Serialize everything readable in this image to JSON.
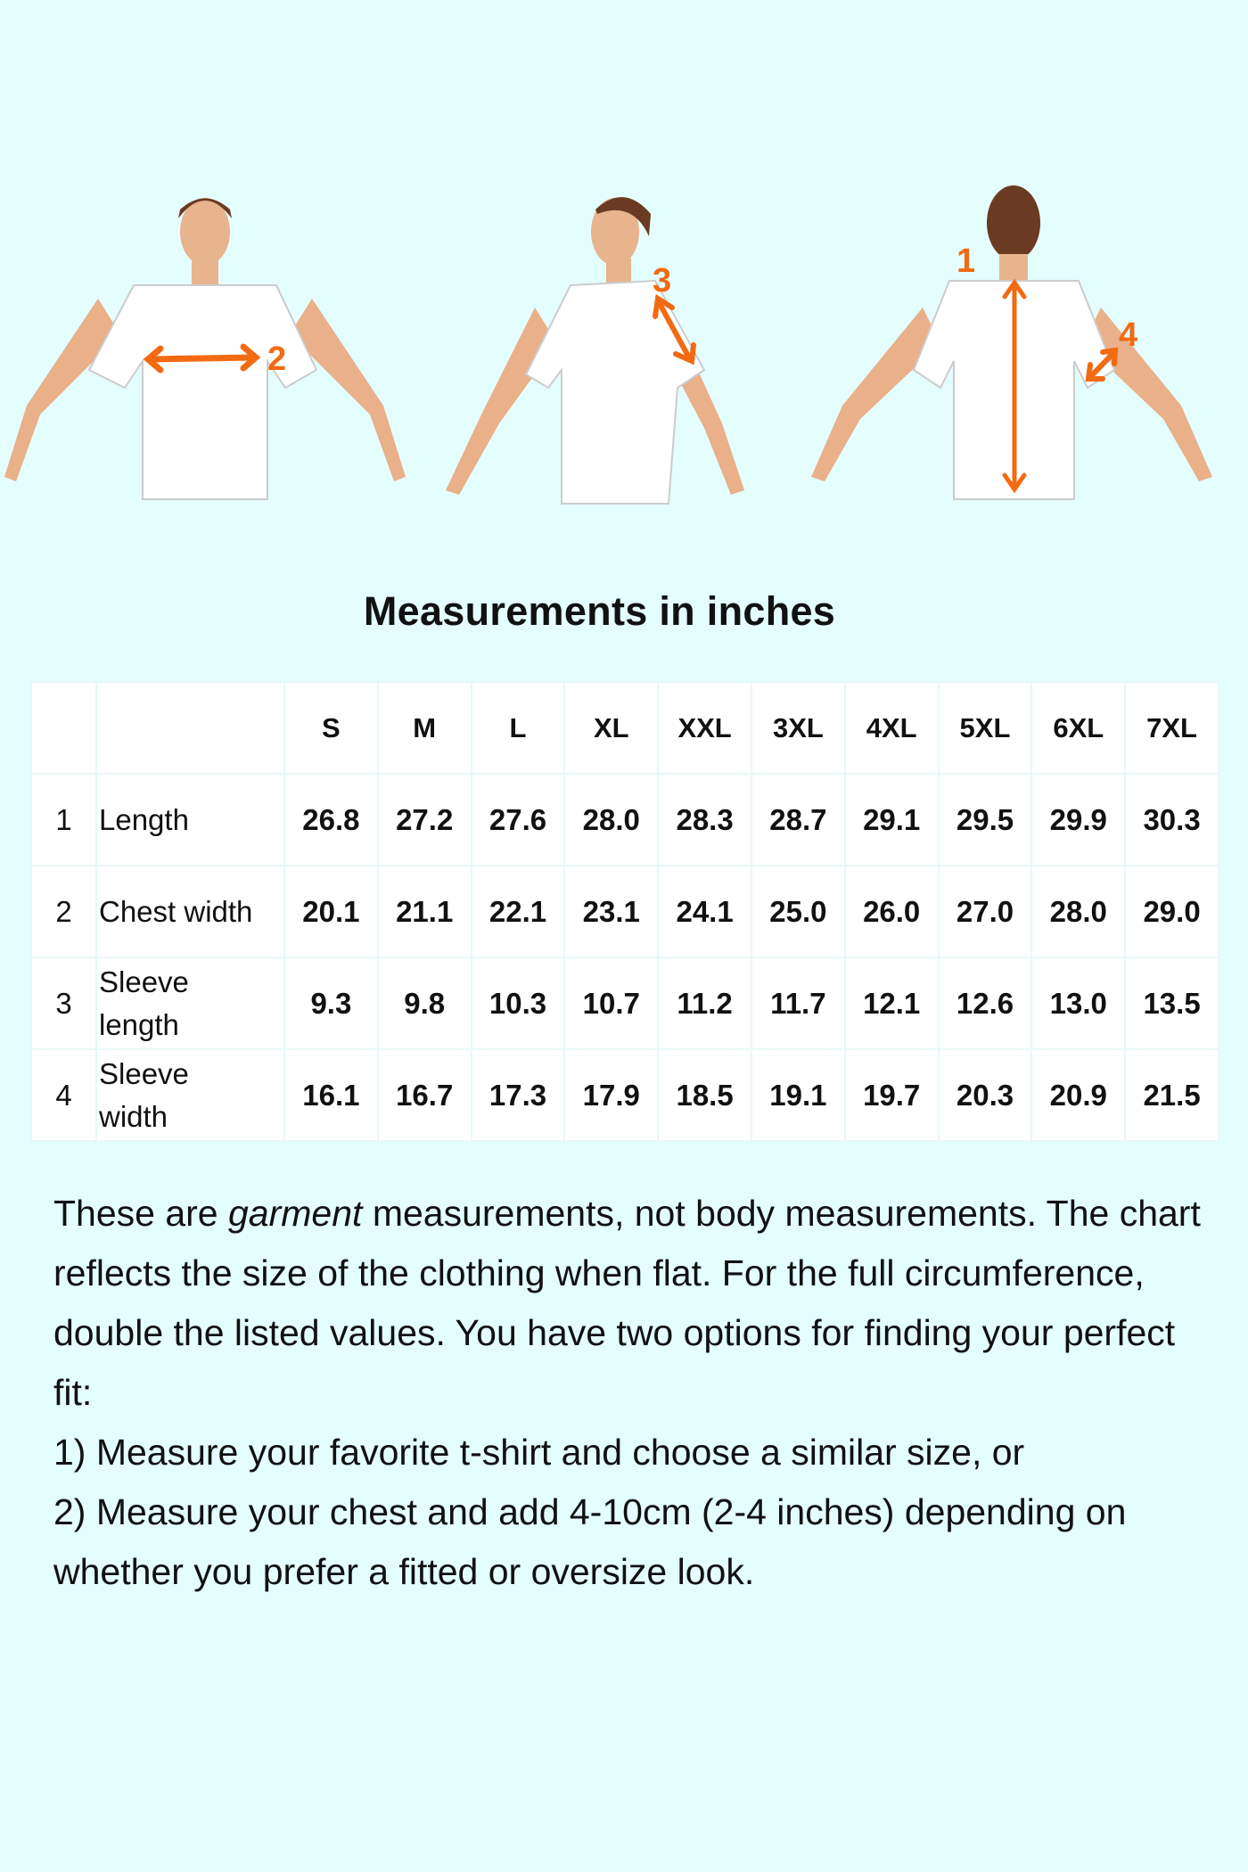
{
  "figures": [
    {
      "view": "front",
      "marker": "2",
      "marker_label": "Chest width"
    },
    {
      "view": "side",
      "marker": "3",
      "marker_label": "Sleeve length"
    },
    {
      "view": "back",
      "markers": [
        "1",
        "4"
      ]
    }
  ],
  "colors": {
    "background": "#e4fdfd",
    "accent": "#f26a12",
    "table_bg": "#ffffff"
  },
  "title": "Measurements in inches",
  "table": {
    "sizes": [
      "S",
      "M",
      "L",
      "XL",
      "XXL",
      "3XL",
      "4XL",
      "5XL",
      "6XL",
      "7XL"
    ],
    "rows": [
      {
        "num": "1",
        "label": "Length",
        "values": [
          "26.8",
          "27.2",
          "27.6",
          "28.0",
          "28.3",
          "28.7",
          "29.1",
          "29.5",
          "29.9",
          "30.3"
        ]
      },
      {
        "num": "2",
        "label": "Chest width",
        "values": [
          "20.1",
          "21.1",
          "22.1",
          "23.1",
          "24.1",
          "25.0",
          "26.0",
          "27.0",
          "28.0",
          "29.0"
        ]
      },
      {
        "num": "3",
        "label": "Sleeve length",
        "values": [
          "9.3",
          "9.8",
          "10.3",
          "10.7",
          "11.2",
          "11.7",
          "12.1",
          "12.6",
          "13.0",
          "13.5"
        ]
      },
      {
        "num": "4",
        "label": "Sleeve width",
        "values": [
          "16.1",
          "16.7",
          "17.3",
          "17.9",
          "18.5",
          "19.1",
          "19.7",
          "20.3",
          "20.9",
          "21.5"
        ]
      }
    ]
  },
  "notes": {
    "p1_before": "These are ",
    "p1_em": "garment",
    "p1_after": " measurements, not body measurements. The chart reflects the size of the clothing when flat. For the full circumference, double the listed values. You have two options for finding your perfect fit:",
    "opt1": "1) Measure your favorite t-shirt and choose a similar size, or",
    "opt2": "2) Measure your chest and add 4-10cm (2-4 inches) depending on whether you prefer a fitted or oversize look."
  }
}
